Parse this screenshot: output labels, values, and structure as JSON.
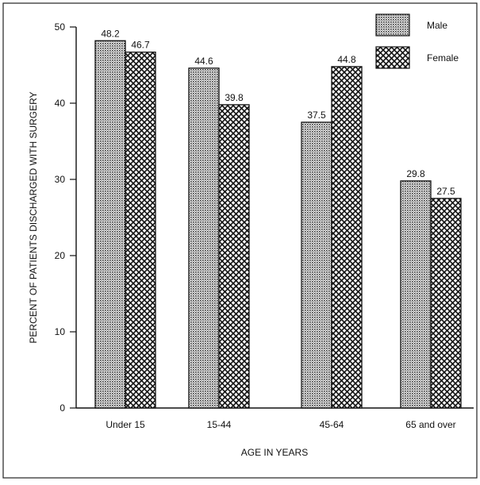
{
  "chart_data": {
    "type": "bar",
    "xlabel": "AGE IN YEARS",
    "ylabel": "PERCENT OF PATIENTS DISCHARGED WITH SURGERY",
    "categories": [
      "Under 15",
      "15-44",
      "45-64",
      "65 and over"
    ],
    "series": [
      {
        "name": "Male",
        "values": [
          48.2,
          44.6,
          37.5,
          29.8
        ],
        "labels": [
          "48.2",
          "44.6",
          "37.5",
          "29.8"
        ],
        "pattern": "fine-dots"
      },
      {
        "name": "Female",
        "values": [
          46.7,
          39.8,
          44.8,
          27.5
        ],
        "labels": [
          "46.7",
          "39.8",
          "44.8",
          "27.5"
        ],
        "pattern": "crosshatch"
      }
    ],
    "ylim": [
      0,
      50
    ],
    "yticks": [
      "0",
      "10",
      "20",
      "30",
      "40",
      "50"
    ],
    "grid": false,
    "legend_position": "top-right",
    "colors": {
      "ink": "#111111",
      "background": "#ffffff"
    }
  }
}
